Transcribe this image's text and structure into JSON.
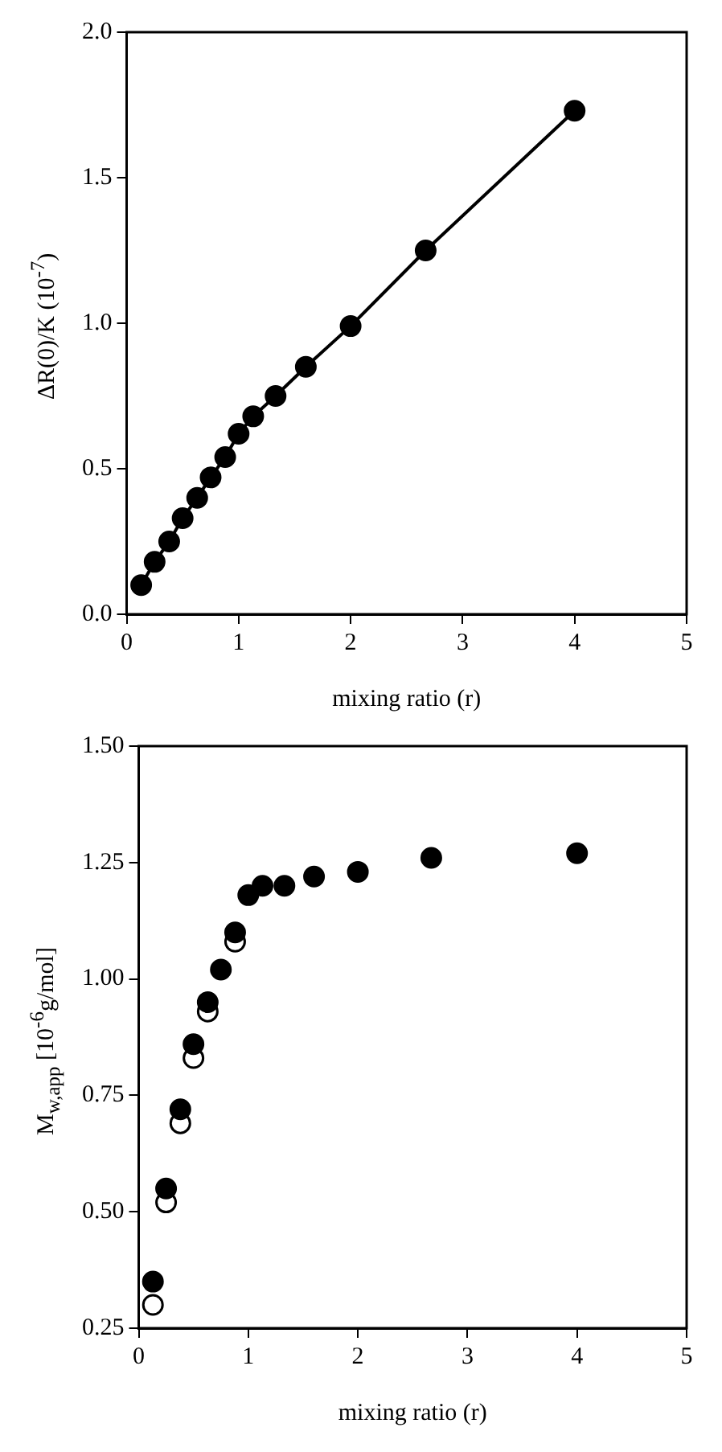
{
  "chart_data": [
    {
      "type": "line",
      "ylabel": "ΔR(0)/K (10$^{-7}$)",
      "xlabel": "mixing ratio (r)",
      "marker": "circle",
      "line_style": "solid",
      "grid": false,
      "legend": false,
      "xlim": [
        0,
        5
      ],
      "xticks": [
        0,
        1,
        2,
        3,
        4,
        5
      ],
      "ylim": [
        0,
        2
      ],
      "yticks": [
        {
          "value": 0,
          "label": "0.0"
        },
        {
          "value": 0.5,
          "label": "0.5"
        },
        {
          "value": 1,
          "label": "1.0"
        },
        {
          "value": 1.5,
          "label": "1.5"
        },
        {
          "value": 2,
          "label": "2.0"
        }
      ],
      "series": [
        {
          "color": "#000000",
          "x": [
            0.13,
            0.25,
            0.38,
            0.5,
            0.63,
            0.75,
            0.88,
            1.0,
            1.13,
            1.33,
            1.6,
            2.0,
            2.67,
            4.0
          ],
          "values": [
            0.1,
            0.18,
            0.25,
            0.33,
            0.4,
            0.47,
            0.54,
            0.62,
            0.68,
            0.75,
            0.85,
            0.99,
            1.25,
            1.73
          ]
        }
      ]
    },
    {
      "type": "scatter",
      "ylabel": "M$_{w,app}$ [10$^{-6}$g/mol]",
      "xlabel": "mixing ratio (r)",
      "marker": "circle",
      "grid": false,
      "legend": false,
      "xlim": [
        0,
        5
      ],
      "xticks": [
        0,
        1,
        2,
        3,
        4,
        5
      ],
      "ylim": [
        0.25,
        1.5
      ],
      "yticks": [
        0.25,
        {
          "value": 0.5,
          "label": "0.50"
        },
        0.75,
        {
          "value": 1,
          "label": "1.00"
        },
        1.25,
        {
          "value": 1.5,
          "label": "1.50"
        }
      ],
      "series": [
        {
          "color": "#ffffff",
          "x": [
            0.13,
            0.25,
            0.38,
            0.5,
            0.63,
            0.88
          ],
          "values": [
            0.3,
            0.52,
            0.69,
            0.83,
            0.93,
            1.08
          ]
        },
        {
          "color": "#000000",
          "x": [
            0.13,
            0.25,
            0.38,
            0.5,
            0.63,
            0.75,
            0.88,
            1.0,
            1.13,
            1.33,
            1.6,
            2.0,
            2.67,
            4.0
          ],
          "values": [
            0.35,
            0.55,
            0.72,
            0.86,
            0.95,
            1.02,
            1.1,
            1.18,
            1.2,
            1.2,
            1.22,
            1.23,
            1.26,
            1.27
          ]
        }
      ]
    }
  ]
}
